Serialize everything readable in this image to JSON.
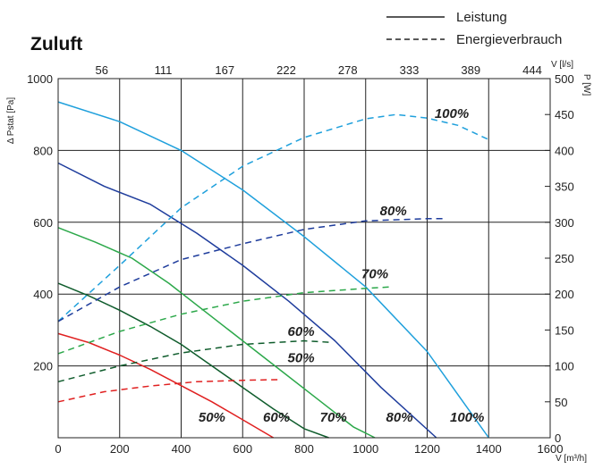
{
  "chart_data": {
    "type": "line",
    "title": "Zuluft",
    "xlabel": "V [m³/h]",
    "x_top_label": "V [l/s]",
    "ylabel": "Δ Pstat [Pa]",
    "y2label": "P [W]",
    "xlim": [
      0,
      1600
    ],
    "ylim": [
      0,
      1000
    ],
    "y2lim": [
      0,
      500
    ],
    "x_ticks": [
      0,
      200,
      400,
      600,
      800,
      1000,
      1200,
      1400,
      1600
    ],
    "x_top_ticks": [
      {
        "label": "56",
        "at": 200
      },
      {
        "label": "111",
        "at": 400
      },
      {
        "label": "167",
        "at": 600
      },
      {
        "label": "222",
        "at": 800
      },
      {
        "label": "278",
        "at": 1000
      },
      {
        "label": "333",
        "at": 1200
      },
      {
        "label": "389",
        "at": 1400
      },
      {
        "label": "444",
        "at": 1600
      }
    ],
    "y_ticks": [
      200,
      400,
      600,
      800,
      1000
    ],
    "y2_ticks": [
      0,
      50,
      100,
      150,
      200,
      250,
      300,
      350,
      400,
      450,
      500
    ],
    "grid": true,
    "legend": {
      "position": "top-right",
      "solid": "Leistung",
      "dashed": "Energieverbrauch"
    },
    "series": [
      {
        "name": "100%",
        "kind": "pressure",
        "color": "#1fa0dc",
        "x": [
          0,
          200,
          400,
          600,
          800,
          1000,
          1200,
          1400
        ],
        "y": [
          935,
          880,
          800,
          690,
          560,
          420,
          240,
          0
        ]
      },
      {
        "name": "80%",
        "kind": "pressure",
        "color": "#1e3c9c",
        "x": [
          0,
          150,
          300,
          450,
          600,
          750,
          900,
          1050,
          1230
        ],
        "y": [
          765,
          700,
          650,
          570,
          480,
          380,
          270,
          140,
          0
        ]
      },
      {
        "name": "70%",
        "kind": "pressure",
        "color": "#2ca84a",
        "x": [
          0,
          120,
          240,
          360,
          480,
          600,
          720,
          840,
          960,
          1030
        ],
        "y": [
          585,
          545,
          500,
          430,
          350,
          270,
          190,
          110,
          30,
          0
        ]
      },
      {
        "name": "60%",
        "kind": "pressure",
        "color": "#0f5c2c",
        "x": [
          0,
          100,
          200,
          300,
          400,
          500,
          600,
          700,
          800,
          880
        ],
        "y": [
          430,
          395,
          355,
          310,
          260,
          200,
          140,
          80,
          25,
          0
        ]
      },
      {
        "name": "50%",
        "kind": "pressure",
        "color": "#e02020",
        "x": [
          0,
          100,
          200,
          300,
          400,
          500,
          600,
          700
        ],
        "y": [
          290,
          265,
          230,
          190,
          145,
          100,
          50,
          0
        ]
      },
      {
        "name": "100%",
        "kind": "power",
        "color": "#1fa0dc",
        "x": [
          0,
          200,
          400,
          600,
          800,
          1000,
          1100,
          1200,
          1300,
          1400
        ],
        "y": [
          162,
          240,
          320,
          378,
          418,
          444,
          450,
          445,
          435,
          415
        ]
      },
      {
        "name": "80%",
        "kind": "power",
        "color": "#1e3c9c",
        "x": [
          0,
          200,
          400,
          600,
          800,
          1000,
          1200,
          1250
        ],
        "y": [
          162,
          210,
          248,
          270,
          290,
          302,
          305,
          305
        ]
      },
      {
        "name": "70%",
        "kind": "power",
        "color": "#2ca84a",
        "x": [
          0,
          200,
          400,
          600,
          800,
          1000,
          1080
        ],
        "y": [
          117,
          148,
          172,
          190,
          202,
          208,
          210
        ]
      },
      {
        "name": "60%",
        "kind": "power",
        "color": "#0f5c2c",
        "x": [
          0,
          200,
          400,
          600,
          800,
          880
        ],
        "y": [
          78,
          100,
          118,
          130,
          135,
          133
        ]
      },
      {
        "name": "50%",
        "kind": "power",
        "color": "#e02020",
        "x": [
          0,
          150,
          300,
          450,
          600,
          720
        ],
        "y": [
          50,
          64,
          72,
          78,
          80,
          81
        ]
      }
    ],
    "annotations": [
      {
        "text": "100%",
        "x": 1280,
        "y": 445,
        "axis": "y2"
      },
      {
        "text": "80%",
        "x": 1090,
        "y": 310,
        "axis": "y2"
      },
      {
        "text": "70%",
        "x": 1030,
        "y": 222,
        "axis": "y2"
      },
      {
        "text": "60%",
        "x": 790,
        "y": 142,
        "axis": "y2"
      },
      {
        "text": "50%",
        "x": 790,
        "y": 105,
        "axis": "y2"
      },
      {
        "text": "50%",
        "x": 500,
        "y": 45,
        "axis": "y"
      },
      {
        "text": "60%",
        "x": 710,
        "y": 45,
        "axis": "y"
      },
      {
        "text": "70%",
        "x": 895,
        "y": 45,
        "axis": "y"
      },
      {
        "text": "80%",
        "x": 1110,
        "y": 45,
        "axis": "y"
      },
      {
        "text": "100%",
        "x": 1330,
        "y": 45,
        "axis": "y"
      }
    ]
  }
}
